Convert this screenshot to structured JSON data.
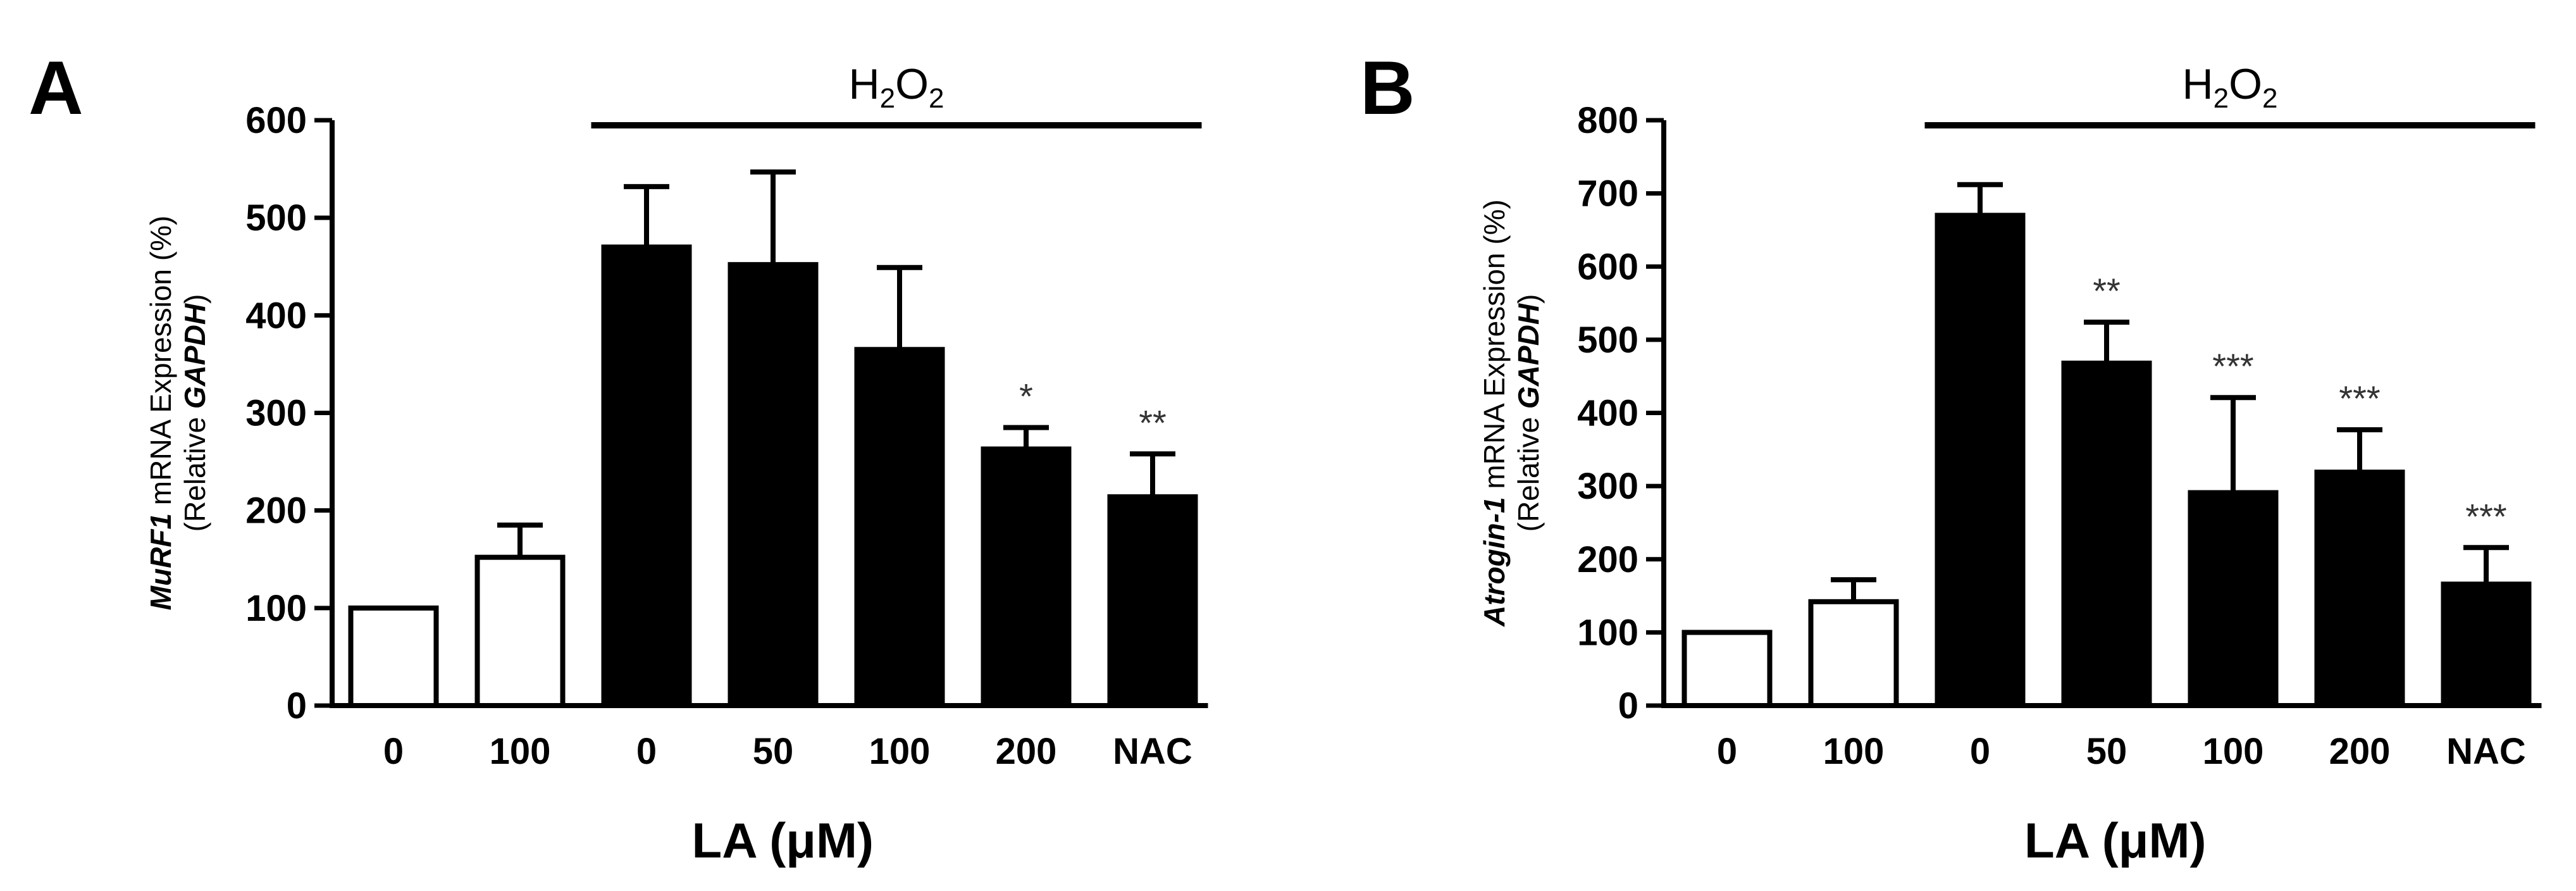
{
  "chart_data": [
    {
      "type": "bar",
      "panel_label": "A",
      "categories": [
        "0",
        "100",
        "0",
        "50",
        "100",
        "200",
        "NAC"
      ],
      "values": [
        100,
        152,
        470,
        452,
        365,
        263,
        214
      ],
      "errors": [
        0,
        33,
        62,
        95,
        84,
        22,
        44
      ],
      "bar_fill": [
        "white",
        "white",
        "black",
        "black",
        "black",
        "black",
        "black"
      ],
      "significance": [
        "",
        "",
        "",
        "",
        "",
        "*",
        "**"
      ],
      "ylim": [
        0,
        600
      ],
      "yticks": [
        "0",
        "100",
        "200",
        "300",
        "400",
        "500",
        "600"
      ],
      "xlabel": "LA (μM)",
      "ylabel_gene": "MuRF1",
      "ylabel_rest": " mRNA  Expression (%)",
      "ylabel_line2_prefix": "(Relative ",
      "ylabel_line2_ref": "GAPDH",
      "ylabel_line2_suffix": ")",
      "treatment": {
        "label_main": "H",
        "label_sub1": "2",
        "label_mid": "O",
        "label_sub2": "2",
        "start_index": 2,
        "end_index": 6
      }
    },
    {
      "type": "bar",
      "panel_label": "B",
      "categories": [
        "0",
        "100",
        "0",
        "50",
        "100",
        "200",
        "NAC"
      ],
      "values": [
        100,
        142,
        670,
        468,
        291,
        319,
        166
      ],
      "errors": [
        0,
        30,
        42,
        56,
        130,
        58,
        50
      ],
      "bar_fill": [
        "white",
        "white",
        "black",
        "black",
        "black",
        "black",
        "black"
      ],
      "significance": [
        "",
        "",
        "",
        "**",
        "***",
        "***",
        "***"
      ],
      "ylim": [
        0,
        800
      ],
      "yticks": [
        "0",
        "100",
        "200",
        "300",
        "400",
        "500",
        "600",
        "700",
        "800"
      ],
      "xlabel": "LA (μM)",
      "ylabel_gene": "Atrogin-1",
      "ylabel_rest": " mRNA Expression (%)",
      "ylabel_line2_prefix": "(Relative ",
      "ylabel_line2_ref": "GAPDH",
      "ylabel_line2_suffix": ")",
      "treatment": {
        "label_main": "H",
        "label_sub1": "2",
        "label_mid": "O",
        "label_sub2": "2",
        "start_index": 2,
        "end_index": 6
      }
    }
  ]
}
